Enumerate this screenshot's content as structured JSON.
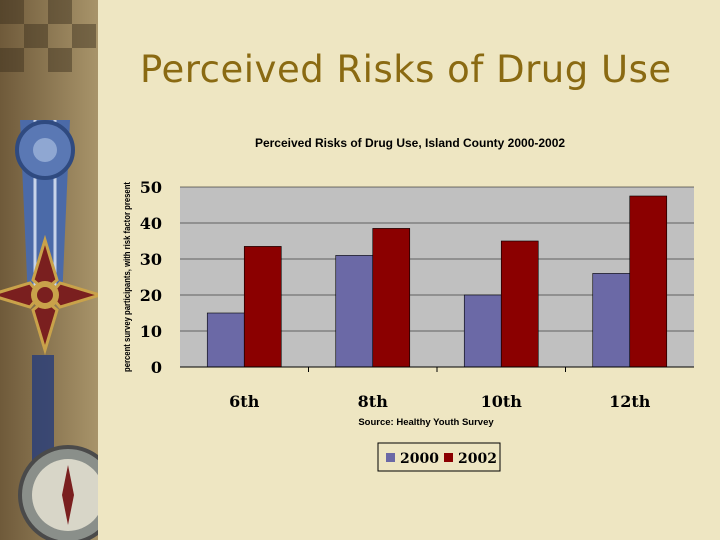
{
  "slide": {
    "title": "Perceived Risks of Drug Use",
    "decoration_icons": [
      "medal-icon",
      "ribbon-icon",
      "compass-icon"
    ]
  },
  "colors": {
    "background": "#eee6c2",
    "title": "#8a6a12",
    "series_2000": "#6b69a6",
    "series_2002": "#8b0000",
    "plot_area": "#c0c0c0"
  },
  "chart_data": {
    "type": "bar",
    "title": "Perceived Risks of Drug Use, Island County 2000-2002",
    "ylabel": "percent survey participants, with risk factor present",
    "xlabel": "",
    "note": "Source: Healthy Youth Survey",
    "categories": [
      "6th",
      "8th",
      "10th",
      "12th"
    ],
    "series": [
      {
        "name": "2000",
        "values": [
          15,
          31,
          20,
          26
        ]
      },
      {
        "name": "2002",
        "values": [
          33.5,
          38.5,
          35,
          47.5
        ]
      }
    ],
    "ylim": [
      0,
      50
    ],
    "yticks": [
      "0",
      "10",
      "20",
      "30",
      "40",
      "50"
    ],
    "grid": true,
    "legend_position": "bottom"
  }
}
